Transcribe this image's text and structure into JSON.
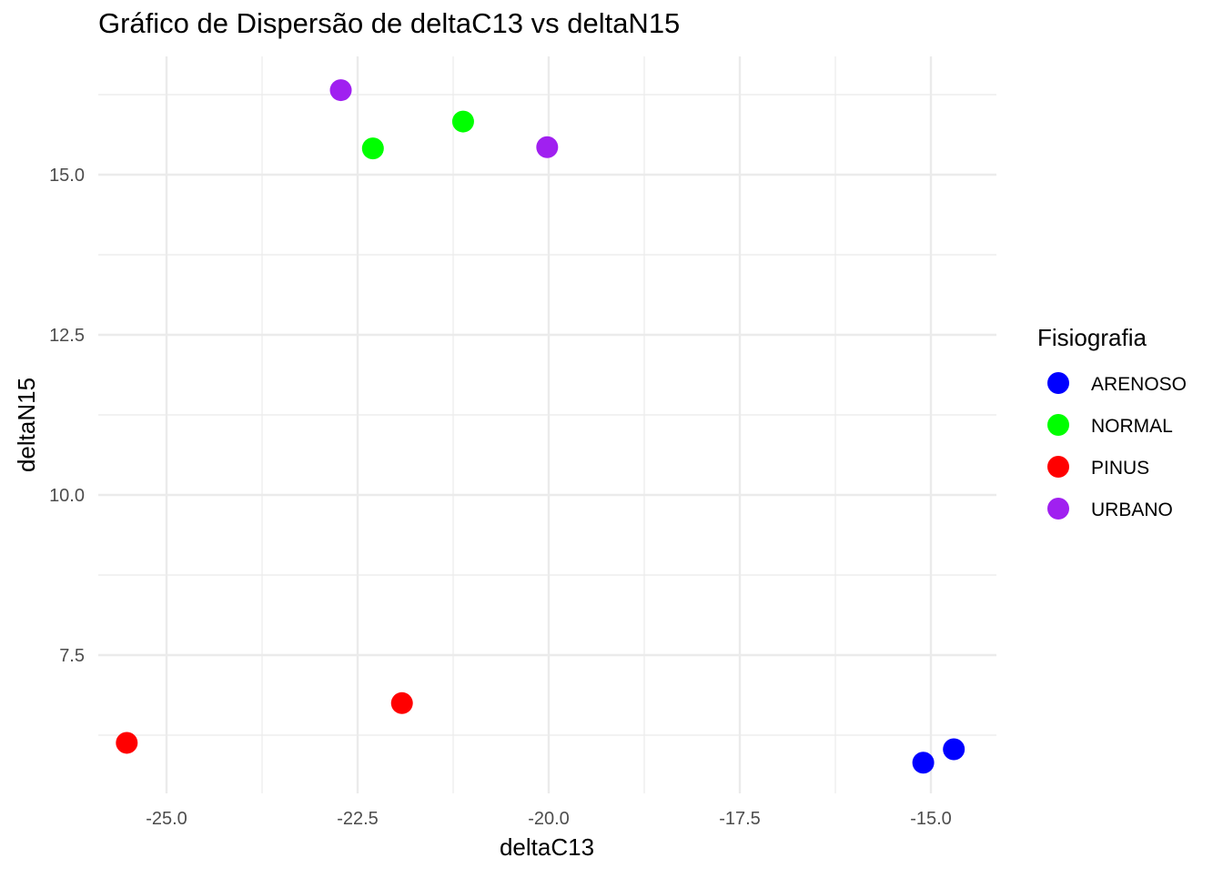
{
  "chart_data": {
    "type": "scatter",
    "title": "Gráfico de Dispersão de deltaC13 vs deltaN15",
    "xlabel": "deltaC13",
    "ylabel": "deltaN15",
    "xlim": [
      -25.35,
      -14.35
    ],
    "ylim": [
      5.0,
      17.0
    ],
    "x_ticks": [
      -25.0,
      -22.5,
      -20.0,
      -17.5,
      -15.0
    ],
    "x_tick_labels": [
      "-25.0",
      "-22.5",
      "-20.0",
      "-17.5",
      "-15.0"
    ],
    "y_ticks": [
      7.5,
      10.0,
      12.5,
      15.0
    ],
    "y_tick_labels": [
      "7.5",
      "10.0",
      "12.5",
      "15.0"
    ],
    "grid": true,
    "legend": {
      "title": "Fisiografia",
      "position": "right",
      "entries": [
        {
          "label": "ARENOSO",
          "color": "#0000FF"
        },
        {
          "label": "NORMAL",
          "color": "#00FF00"
        },
        {
          "label": "PINUS",
          "color": "#FF0000"
        },
        {
          "label": "URBANO",
          "color": "#A020F0"
        }
      ]
    },
    "series": [
      {
        "name": "ARENOSO",
        "color": "#0000FF",
        "points": [
          {
            "x": -15.1,
            "y": 5.82
          },
          {
            "x": -14.7,
            "y": 6.03
          }
        ]
      },
      {
        "name": "NORMAL",
        "color": "#00FF00",
        "points": [
          {
            "x": -22.3,
            "y": 15.41
          },
          {
            "x": -21.12,
            "y": 15.83
          }
        ]
      },
      {
        "name": "PINUS",
        "color": "#FF0000",
        "points": [
          {
            "x": -25.52,
            "y": 6.13
          },
          {
            "x": -21.92,
            "y": 6.75
          }
        ]
      },
      {
        "name": "URBANO",
        "color": "#A020F0",
        "points": [
          {
            "x": -22.72,
            "y": 16.32
          },
          {
            "x": -20.02,
            "y": 15.43
          }
        ]
      }
    ]
  }
}
